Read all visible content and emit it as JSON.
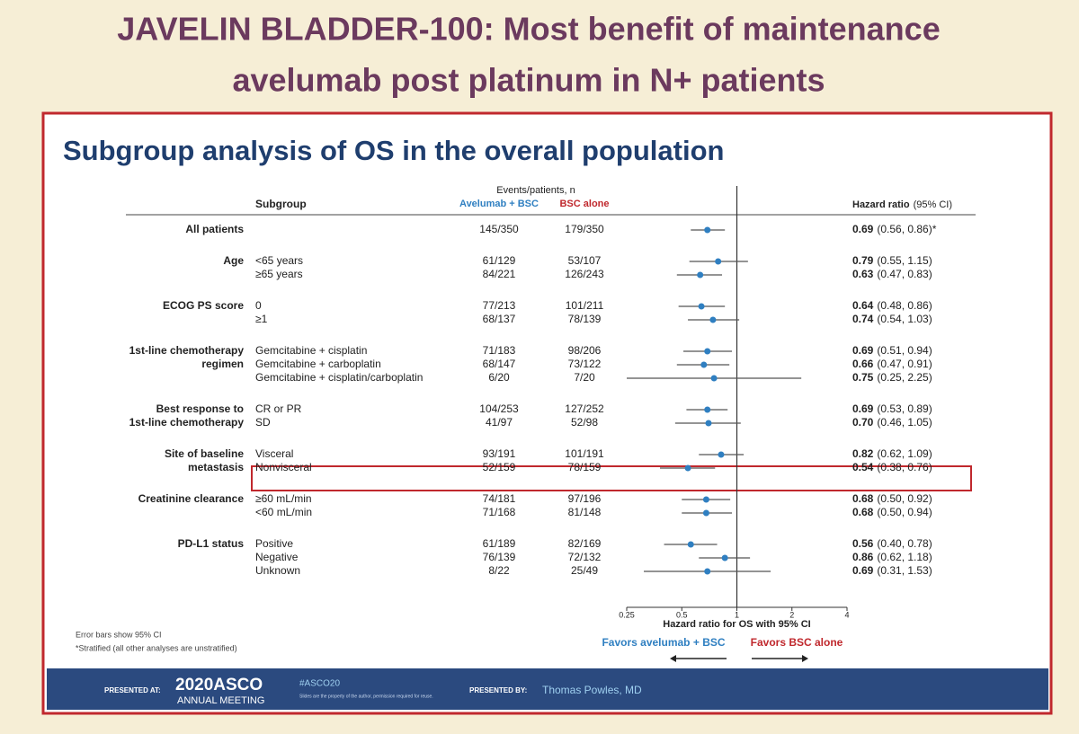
{
  "headline": [
    "JAVELIN BLADDER-100: Most benefit of maintenance",
    "avelumab post platinum  in N+ patients"
  ],
  "chart_data": {
    "type": "forest",
    "title": "Subgroup analysis of OS in the overall population",
    "columns": {
      "subgroup": "Subgroup",
      "events": "Events/patients, n",
      "avelumab": "Avelumab + BSC",
      "bsc": "BSC alone",
      "hr": "Hazard ratio",
      "hr_ci": "(95% CI)"
    },
    "groups": [
      {
        "label": [
          "All patients"
        ],
        "rows": [
          {
            "avelumab": "145/350",
            "bsc": "179/350",
            "hr": 0.69,
            "lower": 0.56,
            "upper": 0.86,
            "ci_label": "(0.56, 0.86)*"
          }
        ]
      },
      {
        "label": [
          "Age"
        ],
        "rows": [
          {
            "subgroup": "<65 years",
            "avelumab": "61/129",
            "bsc": "53/107",
            "hr": 0.79,
            "lower": 0.55,
            "upper": 1.15,
            "ci_label": "(0.55, 1.15)"
          },
          {
            "subgroup": "≥65 years",
            "avelumab": "84/221",
            "bsc": "126/243",
            "hr": 0.63,
            "lower": 0.47,
            "upper": 0.83,
            "ci_label": "(0.47, 0.83)"
          }
        ]
      },
      {
        "label": [
          "ECOG PS score"
        ],
        "rows": [
          {
            "subgroup": "0",
            "avelumab": "77/213",
            "bsc": "101/211",
            "hr": 0.64,
            "lower": 0.48,
            "upper": 0.86,
            "ci_label": "(0.48, 0.86)"
          },
          {
            "subgroup": "≥1",
            "avelumab": "68/137",
            "bsc": "78/139",
            "hr": 0.74,
            "lower": 0.54,
            "upper": 1.03,
            "ci_label": "(0.54, 1.03)"
          }
        ]
      },
      {
        "label": [
          "1st-line chemotherapy",
          "regimen"
        ],
        "rows": [
          {
            "subgroup": "Gemcitabine + cisplatin",
            "avelumab": "71/183",
            "bsc": "98/206",
            "hr": 0.69,
            "lower": 0.51,
            "upper": 0.94,
            "ci_label": "(0.51, 0.94)"
          },
          {
            "subgroup": "Gemcitabine + carboplatin",
            "avelumab": "68/147",
            "bsc": "73/122",
            "hr": 0.66,
            "lower": 0.47,
            "upper": 0.91,
            "ci_label": "(0.47, 0.91)"
          },
          {
            "subgroup": "Gemcitabine + cisplatin/carboplatin",
            "avelumab": "6/20",
            "bsc": "7/20",
            "hr": 0.75,
            "lower": 0.25,
            "upper": 2.25,
            "ci_label": "(0.25, 2.25)"
          }
        ]
      },
      {
        "label": [
          "Best response to",
          "1st-line chemotherapy"
        ],
        "rows": [
          {
            "subgroup": "CR or PR",
            "avelumab": "104/253",
            "bsc": "127/252",
            "hr": 0.69,
            "lower": 0.53,
            "upper": 0.89,
            "ci_label": "(0.53, 0.89)"
          },
          {
            "subgroup": "SD",
            "avelumab": "41/97",
            "bsc": "52/98",
            "hr": 0.7,
            "hr_label": "0.70",
            "lower": 0.46,
            "upper": 1.05,
            "ci_label": "(0.46, 1.05)"
          }
        ]
      },
      {
        "label": [
          "Site of baseline",
          "metastasis"
        ],
        "rows": [
          {
            "subgroup": "Visceral",
            "avelumab": "93/191",
            "bsc": "101/191",
            "hr": 0.82,
            "lower": 0.62,
            "upper": 1.09,
            "ci_label": "(0.62, 1.09)"
          },
          {
            "subgroup": "Nonvisceral",
            "avelumab": "52/159",
            "bsc": "78/159",
            "hr": 0.54,
            "lower": 0.38,
            "upper": 0.76,
            "ci_label": "(0.38, 0.76)"
          }
        ]
      },
      {
        "label": [
          "Creatinine clearance"
        ],
        "rows": [
          {
            "subgroup": "≥60 mL/min",
            "avelumab": "74/181",
            "bsc": "97/196",
            "hr": 0.68,
            "lower": 0.5,
            "upper": 0.92,
            "ci_label": "(0.50, 0.92)"
          },
          {
            "subgroup": "<60 mL/min",
            "avelumab": "71/168",
            "bsc": "81/148",
            "hr": 0.68,
            "lower": 0.5,
            "upper": 0.94,
            "ci_label": "(0.50, 0.94)"
          }
        ]
      },
      {
        "label": [
          "PD-L1 status"
        ],
        "rows": [
          {
            "subgroup": "Positive",
            "avelumab": "61/189",
            "bsc": "82/169",
            "hr": 0.56,
            "lower": 0.4,
            "upper": 0.78,
            "ci_label": "(0.40, 0.78)"
          },
          {
            "subgroup": "Negative",
            "avelumab": "76/139",
            "bsc": "72/132",
            "hr": 0.86,
            "lower": 0.62,
            "upper": 1.18,
            "ci_label": "(0.62, 1.18)"
          },
          {
            "subgroup": "Unknown",
            "avelumab": "8/22",
            "bsc": "25/49",
            "hr": 0.69,
            "lower": 0.31,
            "upper": 1.53,
            "ci_label": "(0.31, 1.53)"
          }
        ]
      }
    ],
    "xscale": "log",
    "xlim": [
      0.25,
      4
    ],
    "xticks": [
      0.25,
      0.5,
      1,
      2,
      4
    ],
    "reference": 1,
    "xlabel": "Hazard ratio for OS with 95% CI",
    "favors_left": "Favors avelumab + BSC",
    "favors_right": "Favors BSC alone",
    "marker_color": "#2f7fc1",
    "footnotes": [
      "Error bars show 95% CI",
      "*Stratified (all other analyses are unstratified)"
    ]
  },
  "footer": {
    "presented_at": "PRESENTED AT:",
    "meeting": "2020ASCO",
    "meeting_sub": "ANNUAL MEETING",
    "hashtag": "#ASCO20",
    "note": "Slides are the property of the author, permission required for reuse.",
    "presented_by": "PRESENTED BY:",
    "presenter": "Thomas Powles, MD"
  }
}
